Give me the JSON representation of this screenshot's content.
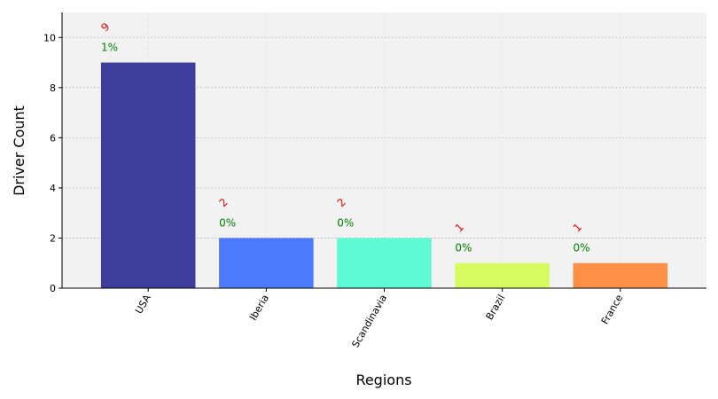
{
  "chart_data": {
    "type": "bar",
    "title": "",
    "xlabel": "Regions",
    "ylabel": "Driver Count",
    "categories": [
      "USA",
      "Iberia",
      "Scandinavia",
      "Brazil",
      "France"
    ],
    "values": [
      9,
      2,
      2,
      1,
      1
    ],
    "count_labels": [
      "9",
      "2",
      "2",
      "1",
      "1"
    ],
    "percent_labels": [
      "1%",
      "0%",
      "0%",
      "0%",
      "0%"
    ],
    "colors": [
      "#2a2a94",
      "#3a6dfe",
      "#4dfbd2",
      "#d2fc4e",
      "#fe8533"
    ],
    "ylim": [
      0,
      11
    ],
    "yticks": [
      0,
      2,
      4,
      6,
      8,
      10
    ],
    "ytick_labels": [
      "0",
      "2",
      "4",
      "6",
      "8",
      "10"
    ],
    "grid": true,
    "background": "#f2f2f2"
  }
}
